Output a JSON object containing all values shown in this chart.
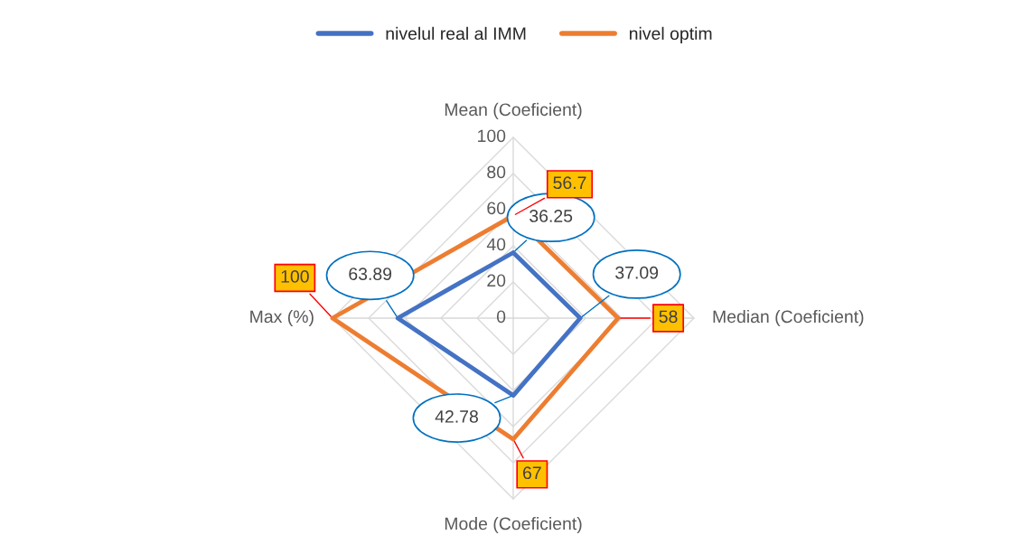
{
  "chart_data": {
    "type": "radar",
    "categories": [
      "Mean (Coeficient)",
      "Median (Coeficient)",
      "Mode (Coeficient)",
      "Max (%)"
    ],
    "series": [
      {
        "name": "nivelul real al IMM",
        "color": "#4472c4",
        "values": [
          36.25,
          37.09,
          42.78,
          63.89
        ]
      },
      {
        "name": "nivel optim",
        "color": "#ed7d31",
        "values": [
          56.7,
          58,
          67,
          100
        ]
      }
    ],
    "ylim": [
      0,
      100
    ],
    "yticks": [
      0,
      20,
      40,
      60,
      80,
      100
    ],
    "grid": true,
    "legend": "top",
    "data_labels": true
  }
}
